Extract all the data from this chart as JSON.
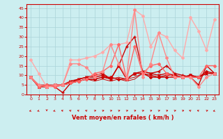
{
  "title": "",
  "xlabel": "Vent moyen/en rafales ( km/h )",
  "ylabel": "",
  "xlim": [
    -0.5,
    23.5
  ],
  "ylim": [
    0,
    47
  ],
  "yticks": [
    0,
    5,
    10,
    15,
    20,
    25,
    30,
    35,
    40,
    45
  ],
  "xticks": [
    0,
    1,
    2,
    3,
    4,
    5,
    6,
    7,
    8,
    9,
    10,
    11,
    12,
    13,
    14,
    15,
    16,
    17,
    18,
    19,
    20,
    21,
    22,
    23
  ],
  "bg_color": "#cceef0",
  "grid_color": "#aad4d8",
  "series": [
    {
      "x": [
        0,
        1,
        2,
        3,
        4,
        5,
        6,
        7,
        8,
        9,
        10,
        11,
        12,
        13,
        14,
        15,
        16,
        17,
        18,
        19,
        20,
        21,
        22,
        23
      ],
      "y": [
        9,
        4,
        5,
        4,
        5,
        6,
        7,
        8,
        8,
        9,
        9,
        8,
        8,
        11,
        11,
        9,
        9,
        9,
        9,
        9,
        10,
        9,
        12,
        11
      ],
      "color": "#cc0000",
      "lw": 1.0,
      "marker": "D",
      "ms": 2.0
    },
    {
      "x": [
        0,
        1,
        2,
        3,
        4,
        5,
        6,
        7,
        8,
        9,
        10,
        11,
        12,
        13,
        14,
        15,
        16,
        17,
        18,
        19,
        20,
        21,
        22,
        23
      ],
      "y": [
        9,
        4,
        5,
        4,
        1,
        6,
        8,
        9,
        9,
        10,
        8,
        15,
        25,
        30,
        12,
        11,
        12,
        15,
        11,
        10,
        9,
        5,
        15,
        11
      ],
      "color": "#cc0000",
      "lw": 1.0,
      "marker": "+",
      "ms": 3.0
    },
    {
      "x": [
        0,
        1,
        2,
        3,
        4,
        5,
        6,
        7,
        8,
        9,
        10,
        11,
        12,
        13,
        14,
        15,
        16,
        17,
        18,
        19,
        20,
        21,
        22,
        23
      ],
      "y": [
        9,
        4,
        4,
        5,
        5,
        7,
        8,
        9,
        10,
        11,
        8,
        15,
        8,
        11,
        12,
        11,
        10,
        11,
        10,
        9,
        10,
        9,
        11,
        11
      ],
      "color": "#cc0000",
      "lw": 1.0,
      "marker": "x",
      "ms": 3.0
    },
    {
      "x": [
        0,
        1,
        2,
        3,
        4,
        5,
        6,
        7,
        8,
        9,
        10,
        11,
        12,
        13,
        14,
        15,
        16,
        17,
        18,
        19,
        20,
        21,
        22,
        23
      ],
      "y": [
        9,
        5,
        4,
        5,
        5,
        6,
        7,
        8,
        7,
        8,
        7,
        8,
        7,
        8,
        11,
        10,
        9,
        10,
        10,
        9,
        9,
        9,
        11,
        11
      ],
      "color": "#cc0000",
      "lw": 0.7,
      "marker": null,
      "ms": 0
    },
    {
      "x": [
        0,
        1,
        2,
        3,
        4,
        5,
        6,
        7,
        8,
        9,
        10,
        11,
        12,
        13,
        14,
        15,
        16,
        17,
        18,
        19,
        20,
        21,
        22,
        23
      ],
      "y": [
        9,
        5,
        5,
        5,
        5,
        6,
        7,
        8,
        8,
        9,
        8,
        9,
        8,
        9,
        11,
        10,
        9,
        10,
        10,
        9,
        9,
        9,
        11,
        11
      ],
      "color": "#cc0000",
      "lw": 0.7,
      "marker": null,
      "ms": 0
    },
    {
      "x": [
        0,
        1,
        2,
        3,
        4,
        5,
        6,
        7,
        8,
        9,
        10,
        11,
        12,
        13,
        14,
        15,
        16,
        17,
        18,
        19,
        20,
        21,
        22,
        23
      ],
      "y": [
        18,
        11,
        4,
        4,
        5,
        18,
        18,
        19,
        20,
        22,
        26,
        26,
        27,
        44,
        41,
        25,
        32,
        30,
        23,
        19,
        40,
        33,
        23,
        39
      ],
      "color": "#ffaaaa",
      "lw": 1.0,
      "marker": "D",
      "ms": 2.0
    },
    {
      "x": [
        0,
        1,
        2,
        3,
        4,
        5,
        6,
        7,
        8,
        9,
        10,
        11,
        12,
        13,
        14,
        15,
        16,
        17,
        18,
        19,
        20,
        21,
        22,
        23
      ],
      "y": [
        9,
        4,
        5,
        4,
        5,
        6,
        7,
        8,
        11,
        12,
        15,
        26,
        8,
        25,
        11,
        15,
        16,
        11,
        9,
        9,
        9,
        9,
        15,
        15
      ],
      "color": "#ff6666",
      "lw": 1.0,
      "marker": "D",
      "ms": 2.0
    },
    {
      "x": [
        0,
        1,
        2,
        3,
        4,
        5,
        6,
        7,
        8,
        9,
        10,
        11,
        12,
        13,
        14,
        15,
        16,
        17,
        18,
        19,
        20,
        21,
        22,
        23
      ],
      "y": [
        9,
        5,
        4,
        5,
        5,
        16,
        16,
        14,
        9,
        12,
        26,
        16,
        9,
        44,
        9,
        16,
        32,
        19,
        9,
        9,
        9,
        4,
        9,
        11
      ],
      "color": "#ff8888",
      "lw": 1.0,
      "marker": "D",
      "ms": 2.0
    }
  ],
  "arrow_angles": [
    225,
    225,
    180,
    225,
    315,
    315,
    315,
    315,
    45,
    45,
    45,
    45,
    45,
    45,
    45,
    45,
    45,
    45,
    45,
    45,
    315,
    315,
    45,
    225
  ]
}
